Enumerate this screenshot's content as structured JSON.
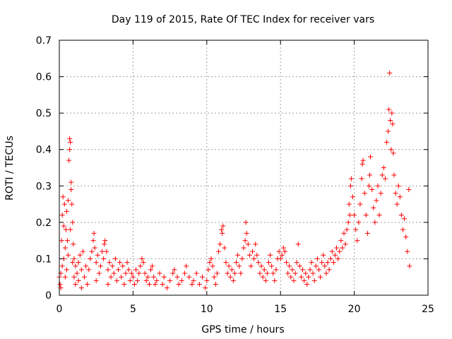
{
  "chart_data": {
    "type": "scatter",
    "title": "Day 119 of 2015, Rate Of TEC Index for receiver vars",
    "xlabel": "GPS time / hours",
    "ylabel": "ROTI / TECUs",
    "xlim": [
      0,
      25
    ],
    "ylim": [
      0,
      0.7
    ],
    "grid": true,
    "marker": "+",
    "marker_color": "#ff0000",
    "x_ticks": [
      0,
      5,
      10,
      15,
      20,
      25
    ],
    "x_tick_labels": [
      "0",
      "5",
      "10",
      "15",
      "20",
      "25"
    ],
    "y_ticks": [
      0,
      0.1,
      0.2,
      0.3,
      0.4,
      0.5,
      0.6,
      0.7
    ],
    "y_tick_labels": [
      "0",
      "0.1",
      "0.2",
      "0.3",
      "0.4",
      "0.5",
      "0.6",
      "0.7"
    ],
    "series": [
      {
        "name": "ROTI",
        "points": [
          [
            0.0,
            0.05
          ],
          [
            0.05,
            0.03
          ],
          [
            0.1,
            0.02
          ],
          [
            0.1,
            0.06
          ],
          [
            0.15,
            0.15
          ],
          [
            0.2,
            0.08
          ],
          [
            0.2,
            0.22
          ],
          [
            0.25,
            0.27
          ],
          [
            0.3,
            0.1
          ],
          [
            0.3,
            0.19
          ],
          [
            0.35,
            0.25
          ],
          [
            0.4,
            0.05
          ],
          [
            0.4,
            0.13
          ],
          [
            0.45,
            0.18
          ],
          [
            0.5,
            0.23
          ],
          [
            0.5,
            0.07
          ],
          [
            0.55,
            0.15
          ],
          [
            0.6,
            0.26
          ],
          [
            0.6,
            0.11
          ],
          [
            0.65,
            0.37
          ],
          [
            0.7,
            0.4
          ],
          [
            0.7,
            0.43
          ],
          [
            0.75,
            0.42
          ],
          [
            0.75,
            0.18
          ],
          [
            0.8,
            0.29
          ],
          [
            0.8,
            0.31
          ],
          [
            0.85,
            0.25
          ],
          [
            0.9,
            0.2
          ],
          [
            0.9,
            0.09
          ],
          [
            0.95,
            0.14
          ],
          [
            1.0,
            0.05
          ],
          [
            1.0,
            0.1
          ],
          [
            1.1,
            0.03
          ],
          [
            1.1,
            0.08
          ],
          [
            1.2,
            0.06
          ],
          [
            1.3,
            0.04
          ],
          [
            1.3,
            0.09
          ],
          [
            1.4,
            0.11
          ],
          [
            1.5,
            0.07
          ],
          [
            1.5,
            0.02
          ],
          [
            1.6,
            0.12
          ],
          [
            1.7,
            0.05
          ],
          [
            1.8,
            0.08
          ],
          [
            1.9,
            0.03
          ],
          [
            2.0,
            0.07
          ],
          [
            2.1,
            0.1
          ],
          [
            2.2,
            0.12
          ],
          [
            2.3,
            0.15
          ],
          [
            2.35,
            0.17
          ],
          [
            2.4,
            0.13
          ],
          [
            2.5,
            0.09
          ],
          [
            2.5,
            0.04
          ],
          [
            2.6,
            0.11
          ],
          [
            2.7,
            0.06
          ],
          [
            2.8,
            0.08
          ],
          [
            2.9,
            0.12
          ],
          [
            3.0,
            0.1
          ],
          [
            3.05,
            0.14
          ],
          [
            3.1,
            0.15
          ],
          [
            3.2,
            0.12
          ],
          [
            3.3,
            0.07
          ],
          [
            3.3,
            0.03
          ],
          [
            3.4,
            0.09
          ],
          [
            3.5,
            0.05
          ],
          [
            3.6,
            0.08
          ],
          [
            3.7,
            0.06
          ],
          [
            3.8,
            0.1
          ],
          [
            3.9,
            0.04
          ],
          [
            4.0,
            0.07
          ],
          [
            4.1,
            0.09
          ],
          [
            4.2,
            0.05
          ],
          [
            4.3,
            0.08
          ],
          [
            4.4,
            0.03
          ],
          [
            4.5,
            0.06
          ],
          [
            4.6,
            0.09
          ],
          [
            4.7,
            0.07
          ],
          [
            4.8,
            0.04
          ],
          [
            4.9,
            0.06
          ],
          [
            5.0,
            0.05
          ],
          [
            5.1,
            0.03
          ],
          [
            5.2,
            0.07
          ],
          [
            5.3,
            0.04
          ],
          [
            5.4,
            0.06
          ],
          [
            5.5,
            0.08
          ],
          [
            5.6,
            0.1
          ],
          [
            5.7,
            0.09
          ],
          [
            5.8,
            0.06
          ],
          [
            5.9,
            0.04
          ],
          [
            6.0,
            0.05
          ],
          [
            6.1,
            0.03
          ],
          [
            6.2,
            0.07
          ],
          [
            6.3,
            0.08
          ],
          [
            6.4,
            0.05
          ],
          [
            6.5,
            0.03
          ],
          [
            6.6,
            0.04
          ],
          [
            6.8,
            0.06
          ],
          [
            7.0,
            0.03
          ],
          [
            7.1,
            0.05
          ],
          [
            7.3,
            0.02
          ],
          [
            7.5,
            0.04
          ],
          [
            7.7,
            0.06
          ],
          [
            7.8,
            0.07
          ],
          [
            8.0,
            0.05
          ],
          [
            8.1,
            0.03
          ],
          [
            8.3,
            0.04
          ],
          [
            8.5,
            0.06
          ],
          [
            8.6,
            0.08
          ],
          [
            8.8,
            0.05
          ],
          [
            9.0,
            0.03
          ],
          [
            9.1,
            0.04
          ],
          [
            9.3,
            0.06
          ],
          [
            9.5,
            0.03
          ],
          [
            9.7,
            0.05
          ],
          [
            9.9,
            0.02
          ],
          [
            10.0,
            0.04
          ],
          [
            10.1,
            0.07
          ],
          [
            10.2,
            0.09
          ],
          [
            10.3,
            0.1
          ],
          [
            10.4,
            0.08
          ],
          [
            10.5,
            0.05
          ],
          [
            10.6,
            0.03
          ],
          [
            10.7,
            0.06
          ],
          [
            10.8,
            0.12
          ],
          [
            10.9,
            0.14
          ],
          [
            11.0,
            0.18
          ],
          [
            11.05,
            0.17
          ],
          [
            11.1,
            0.19
          ],
          [
            11.2,
            0.13
          ],
          [
            11.3,
            0.09
          ],
          [
            11.4,
            0.06
          ],
          [
            11.5,
            0.08
          ],
          [
            11.6,
            0.05
          ],
          [
            11.7,
            0.07
          ],
          [
            11.8,
            0.04
          ],
          [
            11.9,
            0.06
          ],
          [
            12.0,
            0.09
          ],
          [
            12.1,
            0.11
          ],
          [
            12.2,
            0.08
          ],
          [
            12.3,
            0.06
          ],
          [
            12.4,
            0.1
          ],
          [
            12.5,
            0.13
          ],
          [
            12.6,
            0.15
          ],
          [
            12.65,
            0.2
          ],
          [
            12.7,
            0.17
          ],
          [
            12.8,
            0.14
          ],
          [
            12.9,
            0.11
          ],
          [
            13.0,
            0.08
          ],
          [
            13.1,
            0.12
          ],
          [
            13.2,
            0.1
          ],
          [
            13.3,
            0.14
          ],
          [
            13.4,
            0.11
          ],
          [
            13.5,
            0.09
          ],
          [
            13.6,
            0.06
          ],
          [
            13.7,
            0.08
          ],
          [
            13.8,
            0.05
          ],
          [
            13.9,
            0.07
          ],
          [
            14.0,
            0.04
          ],
          [
            14.1,
            0.06
          ],
          [
            14.2,
            0.09
          ],
          [
            14.3,
            0.11
          ],
          [
            14.4,
            0.08
          ],
          [
            14.5,
            0.06
          ],
          [
            14.6,
            0.04
          ],
          [
            14.7,
            0.07
          ],
          [
            14.8,
            0.1
          ],
          [
            14.9,
            0.12
          ],
          [
            15.0,
            0.1
          ],
          [
            15.1,
            0.11
          ],
          [
            15.2,
            0.13
          ],
          [
            15.3,
            0.12
          ],
          [
            15.4,
            0.09
          ],
          [
            15.5,
            0.06
          ],
          [
            15.6,
            0.08
          ],
          [
            15.7,
            0.05
          ],
          [
            15.8,
            0.07
          ],
          [
            15.9,
            0.04
          ],
          [
            16.0,
            0.06
          ],
          [
            16.1,
            0.09
          ],
          [
            16.2,
            0.14
          ],
          [
            16.3,
            0.08
          ],
          [
            16.4,
            0.05
          ],
          [
            16.5,
            0.07
          ],
          [
            16.6,
            0.04
          ],
          [
            16.7,
            0.06
          ],
          [
            16.8,
            0.03
          ],
          [
            16.9,
            0.05
          ],
          [
            17.0,
            0.07
          ],
          [
            17.1,
            0.09
          ],
          [
            17.2,
            0.06
          ],
          [
            17.3,
            0.04
          ],
          [
            17.4,
            0.08
          ],
          [
            17.5,
            0.1
          ],
          [
            17.6,
            0.07
          ],
          [
            17.7,
            0.05
          ],
          [
            17.8,
            0.09
          ],
          [
            17.9,
            0.11
          ],
          [
            18.0,
            0.08
          ],
          [
            18.1,
            0.06
          ],
          [
            18.2,
            0.09
          ],
          [
            18.3,
            0.07
          ],
          [
            18.4,
            0.1
          ],
          [
            18.5,
            0.12
          ],
          [
            18.6,
            0.09
          ],
          [
            18.7,
            0.11
          ],
          [
            18.8,
            0.13
          ],
          [
            18.9,
            0.1
          ],
          [
            19.0,
            0.12
          ],
          [
            19.1,
            0.15
          ],
          [
            19.2,
            0.13
          ],
          [
            19.3,
            0.17
          ],
          [
            19.4,
            0.14
          ],
          [
            19.5,
            0.18
          ],
          [
            19.6,
            0.2
          ],
          [
            19.65,
            0.25
          ],
          [
            19.7,
            0.22
          ],
          [
            19.75,
            0.3
          ],
          [
            19.8,
            0.32
          ],
          [
            19.9,
            0.27
          ],
          [
            20.0,
            0.22
          ],
          [
            20.1,
            0.18
          ],
          [
            20.2,
            0.15
          ],
          [
            20.3,
            0.2
          ],
          [
            20.4,
            0.25
          ],
          [
            20.5,
            0.32
          ],
          [
            20.55,
            0.36
          ],
          [
            20.6,
            0.37
          ],
          [
            20.7,
            0.28
          ],
          [
            20.8,
            0.22
          ],
          [
            20.9,
            0.17
          ],
          [
            21.0,
            0.3
          ],
          [
            21.05,
            0.33
          ],
          [
            21.1,
            0.38
          ],
          [
            21.2,
            0.29
          ],
          [
            21.3,
            0.24
          ],
          [
            21.4,
            0.2
          ],
          [
            21.5,
            0.26
          ],
          [
            21.6,
            0.3
          ],
          [
            21.7,
            0.22
          ],
          [
            21.8,
            0.28
          ],
          [
            21.9,
            0.33
          ],
          [
            22.0,
            0.35
          ],
          [
            22.1,
            0.32
          ],
          [
            22.2,
            0.42
          ],
          [
            22.3,
            0.45
          ],
          [
            22.35,
            0.51
          ],
          [
            22.4,
            0.61
          ],
          [
            22.45,
            0.48
          ],
          [
            22.5,
            0.4
          ],
          [
            22.55,
            0.5
          ],
          [
            22.6,
            0.47
          ],
          [
            22.65,
            0.39
          ],
          [
            22.7,
            0.33
          ],
          [
            22.8,
            0.28
          ],
          [
            22.9,
            0.25
          ],
          [
            23.0,
            0.3
          ],
          [
            23.1,
            0.27
          ],
          [
            23.2,
            0.22
          ],
          [
            23.3,
            0.18
          ],
          [
            23.4,
            0.21
          ],
          [
            23.5,
            0.16
          ],
          [
            23.6,
            0.12
          ],
          [
            23.7,
            0.29
          ],
          [
            23.75,
            0.08
          ]
        ]
      }
    ]
  }
}
